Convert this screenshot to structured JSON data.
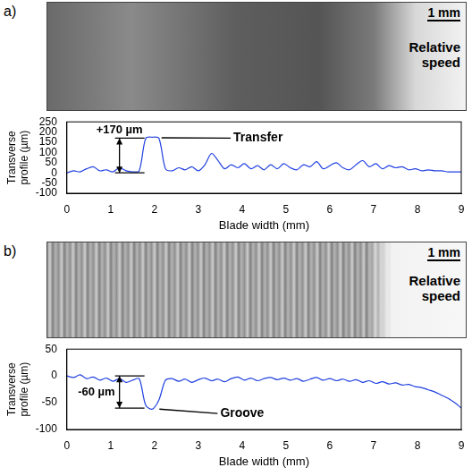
{
  "chart_data": [
    {
      "type": "line",
      "xlabel": "Blade width (mm)",
      "ylabel": "Transverse profile (µm)",
      "x": [
        0,
        0.15,
        0.3,
        0.45,
        0.6,
        0.75,
        0.9,
        1.05,
        1.2,
        1.35,
        1.5,
        1.65,
        1.8,
        1.95,
        2.1,
        2.25,
        2.4,
        2.55,
        2.7,
        2.85,
        3.0,
        3.15,
        3.3,
        3.45,
        3.6,
        3.75,
        3.9,
        4.05,
        4.2,
        4.35,
        4.5,
        4.65,
        4.8,
        4.95,
        5.1,
        5.25,
        5.4,
        5.55,
        5.7,
        5.85,
        6.0,
        6.15,
        6.3,
        6.45,
        6.6,
        6.75,
        6.9,
        7.05,
        7.2,
        7.35,
        7.5,
        7.65,
        7.8,
        7.95,
        8.1,
        8.25,
        8.4,
        8.55,
        8.7,
        8.85,
        9.0
      ],
      "series": [
        {
          "color": "#2040e0",
          "values": [
            0,
            10,
            5,
            20,
            30,
            10,
            15,
            5,
            25,
            10,
            5,
            10,
            170,
            175,
            170,
            20,
            10,
            25,
            15,
            30,
            10,
            40,
            95,
            60,
            20,
            40,
            25,
            45,
            20,
            35,
            15,
            40,
            20,
            45,
            25,
            15,
            40,
            30,
            55,
            20,
            35,
            50,
            25,
            15,
            40,
            60,
            30,
            45,
            20,
            35,
            25,
            30,
            15,
            20,
            10,
            15,
            10,
            10,
            5,
            5,
            5
          ]
        }
      ],
      "xlim": [
        0,
        9
      ],
      "xticks": [
        0,
        1,
        2,
        3,
        4,
        5,
        6,
        7,
        8,
        9
      ],
      "ylim": [
        -100,
        250
      ],
      "yticks": [
        -100,
        -50,
        0,
        50,
        100,
        150,
        200,
        250
      ],
      "grid": false,
      "annotations": [
        {
          "label": "+170 µm",
          "x": 1.2,
          "from": 0,
          "to": 170
        },
        {
          "label": "Transfer",
          "x": 3.8,
          "y": 170,
          "target_x": 2.1,
          "target_y": 172
        }
      ]
    },
    {
      "type": "line",
      "xlabel": "Blade width (mm)",
      "ylabel": "Transverse profile (µm)",
      "x": [
        0,
        0.15,
        0.3,
        0.45,
        0.6,
        0.75,
        0.9,
        1.05,
        1.2,
        1.35,
        1.5,
        1.65,
        1.8,
        1.95,
        2.1,
        2.25,
        2.4,
        2.55,
        2.7,
        2.85,
        3.0,
        3.15,
        3.3,
        3.45,
        3.6,
        3.75,
        3.9,
        4.05,
        4.2,
        4.35,
        4.5,
        4.65,
        4.8,
        4.95,
        5.1,
        5.25,
        5.4,
        5.55,
        5.7,
        5.85,
        6.0,
        6.15,
        6.3,
        6.45,
        6.6,
        6.75,
        6.9,
        7.05,
        7.2,
        7.35,
        7.5,
        7.65,
        7.8,
        7.95,
        8.1,
        8.25,
        8.4,
        8.55,
        8.7,
        8.85,
        9.0
      ],
      "series": [
        {
          "color": "#2040e0",
          "values": [
            0,
            -3,
            2,
            -5,
            -2,
            -8,
            -4,
            -10,
            -5,
            -12,
            -8,
            -5,
            -55,
            -62,
            -45,
            -8,
            -5,
            -10,
            -6,
            -12,
            -7,
            -4,
            -9,
            -6,
            -11,
            -5,
            -2,
            -8,
            -4,
            -9,
            -5,
            -3,
            -7,
            -4,
            -8,
            -5,
            -10,
            -6,
            -3,
            -8,
            -5,
            -9,
            -6,
            -10,
            -7,
            -12,
            -9,
            -14,
            -11,
            -15,
            -13,
            -17,
            -16,
            -20,
            -22,
            -26,
            -30,
            -36,
            -42,
            -50,
            -60
          ]
        }
      ],
      "xlim": [
        0,
        9
      ],
      "xticks": [
        0,
        1,
        2,
        3,
        4,
        5,
        6,
        7,
        8,
        9
      ],
      "ylim": [
        -100,
        50
      ],
      "yticks": [
        -100,
        -50,
        0,
        50
      ],
      "grid": false,
      "annotations": [
        {
          "label": "-60 µm",
          "x": 1.2,
          "from": 0,
          "to": -60
        },
        {
          "label": "Groove",
          "x": 3.5,
          "y": -70,
          "target_x": 2.05,
          "target_y": -62
        }
      ]
    }
  ],
  "photos": [
    {
      "letter": "a)",
      "scale": "1 mm",
      "label": "Relative speed"
    },
    {
      "letter": "b)",
      "scale": "1 mm",
      "label": "Relative speed"
    }
  ]
}
